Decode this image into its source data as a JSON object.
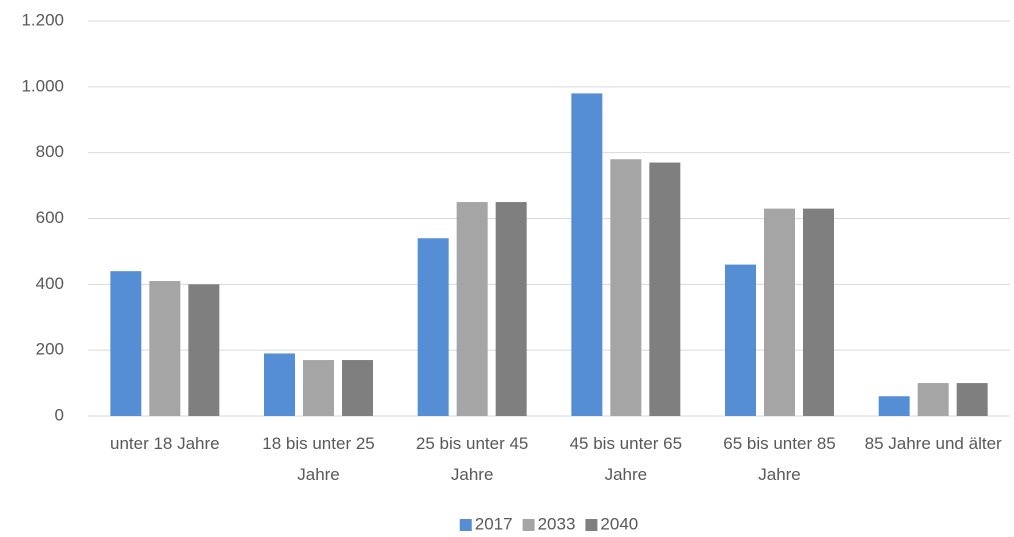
{
  "chart_data": {
    "type": "bar",
    "categories": [
      "unter 18 Jahre",
      "18 bis unter 25 Jahre",
      "25 bis unter 45 Jahre",
      "45 bis unter 65 Jahre",
      "65 bis unter 85 Jahre",
      "85 Jahre und älter"
    ],
    "series": [
      {
        "name": "2017",
        "color": "#558ed5",
        "values": [
          440,
          190,
          540,
          980,
          460,
          60
        ]
      },
      {
        "name": "2033",
        "color": "#a5a5a5",
        "values": [
          410,
          170,
          650,
          780,
          630,
          100
        ]
      },
      {
        "name": "2040",
        "color": "#7f7f7f",
        "values": [
          400,
          170,
          650,
          770,
          630,
          100
        ]
      }
    ],
    "ylim": [
      0,
      1200
    ],
    "yticks": [
      0,
      200,
      400,
      600,
      800,
      {
        "value": 1000,
        "label": "1.000"
      },
      {
        "value": 1200,
        "label": "1.200"
      }
    ],
    "grid": true,
    "legend": "bottom"
  }
}
